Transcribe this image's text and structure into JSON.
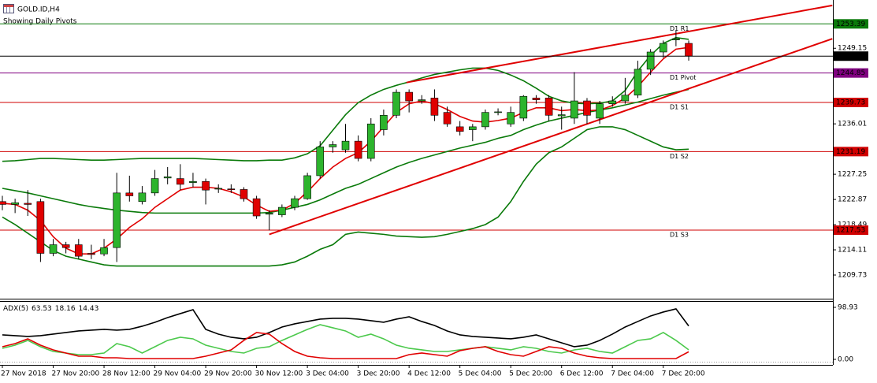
{
  "chart_data": [
    {
      "type": "candlestick",
      "title": "GOLD.ID,H4",
      "subtitle": "Showing Daily Pivots",
      "categories": [
        "27 Nov 2018",
        null,
        null,
        null,
        "27 Nov 20:00",
        null,
        null,
        null,
        "28 Nov 12:00",
        null,
        null,
        null,
        "29 Nov 04:00",
        null,
        null,
        null,
        "29 Nov 20:00",
        null,
        null,
        null,
        "30 Nov 12:00",
        null,
        null,
        null,
        "3 Dec 04:00",
        null,
        null,
        null,
        "3 Dec 20:00",
        null,
        null,
        null,
        "4 Dec 12:00",
        null,
        null,
        null,
        "5 Dec 04:00",
        null,
        null,
        null,
        "5 Dec 20:00",
        null,
        null,
        null,
        "6 Dec 12:00",
        null,
        null,
        null,
        "7 Dec 04:00",
        null,
        null,
        null,
        "7 Dec 20:00",
        null,
        null
      ],
      "open": [
        1222.5,
        1222,
        1222.2,
        1222.5,
        1213.5,
        1215,
        1215,
        1213.5,
        1213.4,
        1214.5,
        1224,
        1222.5,
        1224,
        1226.6,
        1226.5,
        1225.8,
        1226,
        1224.8,
        1224.7,
        1224.6,
        1223,
        1220.3,
        1220.2,
        1221.5,
        1223,
        1227,
        1232,
        1231.5,
        1233,
        1230,
        1235,
        1237.5,
        1241.5,
        1240,
        1240.5,
        1238,
        1235.5,
        1235,
        1235.5,
        1238,
        1236,
        1237,
        1240.5,
        1240.5,
        1237.4,
        1237,
        1240,
        1237,
        1239.5,
        1240,
        1241,
        1245.5,
        1248.5,
        1250.6,
        1250
      ],
      "high": [
        1223.5,
        1223,
        1224.5,
        1223,
        1216,
        1215.5,
        1216,
        1215,
        1216,
        1227.5,
        1227,
        1225.2,
        1228,
        1228.5,
        1229,
        1227.5,
        1226.5,
        1225.5,
        1225.5,
        1225,
        1223.5,
        1221,
        1222,
        1223.5,
        1227.5,
        1233,
        1233,
        1236,
        1234,
        1237,
        1238.5,
        1242,
        1242,
        1241,
        1242,
        1239,
        1236.5,
        1236,
        1238.5,
        1238.7,
        1239,
        1241,
        1241,
        1241,
        1239,
        1245,
        1240.5,
        1240,
        1240.8,
        1244,
        1247,
        1249,
        1250.5,
        1252.2,
        1250.5
      ],
      "low": [
        1221,
        1220.5,
        1220,
        1212,
        1213,
        1213.5,
        1212.5,
        1212.5,
        1213,
        1212,
        1222.5,
        1222,
        1223.5,
        1225.5,
        1224.5,
        1225,
        1222,
        1224,
        1224,
        1222.5,
        1219.5,
        1217.5,
        1219.8,
        1221,
        1222.8,
        1226.5,
        1231,
        1231,
        1229.5,
        1229.5,
        1234,
        1237,
        1238,
        1239.5,
        1236.5,
        1235.5,
        1234,
        1233,
        1235,
        1237.5,
        1235.5,
        1236.5,
        1239.5,
        1236.5,
        1235,
        1236,
        1236,
        1236,
        1239,
        1239.5,
        1240.5,
        1244.5,
        1247.5,
        1249.5,
        1247
      ],
      "close": [
        1222,
        1222.3,
        1222,
        1213.5,
        1215,
        1214.5,
        1213,
        1213.3,
        1214.5,
        1224,
        1223.5,
        1224,
        1226.5,
        1226.8,
        1225.5,
        1226,
        1224.5,
        1224.8,
        1224.6,
        1223,
        1220,
        1220.5,
        1221.5,
        1223,
        1227,
        1232,
        1232.4,
        1233,
        1230,
        1236,
        1237.5,
        1241.5,
        1240,
        1240.2,
        1237.5,
        1236,
        1234.7,
        1235.5,
        1238,
        1238.1,
        1238,
        1240.8,
        1240.2,
        1237.5,
        1237.6,
        1240,
        1237.5,
        1239.5,
        1240,
        1241,
        1245.5,
        1248.5,
        1250,
        1250.8,
        1247.78
      ],
      "up_color": "#2db42d",
      "down_color": "#e00000",
      "ylim": [
        1205.62,
        1257.54
      ],
      "yticks": [
        1249.15,
        1236.01,
        1227.25,
        1222.87,
        1218.49,
        1214.11,
        1209.73
      ],
      "overlays": [
        {
          "color": "#0a7a0a",
          "values": [
            1229.5,
            1229.6,
            1229.8,
            1230,
            1230,
            1229.9,
            1229.8,
            1229.7,
            1229.7,
            1229.8,
            1229.9,
            1230,
            1230,
            1230,
            1230,
            1230,
            1229.9,
            1229.8,
            1229.7,
            1229.6,
            1229.6,
            1229.7,
            1229.7,
            1230.1,
            1230.8,
            1232.2,
            1234.9,
            1237.6,
            1239.7,
            1241,
            1242,
            1242.7,
            1243.3,
            1244,
            1244.6,
            1245,
            1245.4,
            1245.7,
            1245.7,
            1245.3,
            1244.5,
            1243.5,
            1242.2,
            1240.8,
            1240,
            1239.6,
            1239.5,
            1239.6,
            1240,
            1241.8,
            1245.2,
            1247.9,
            1250,
            1251,
            1250.7
          ]
        },
        {
          "color": "#0a7a0a",
          "values": [
            1224.8,
            1224.4,
            1224,
            1223.5,
            1223,
            1222.5,
            1222,
            1221.6,
            1221.3,
            1221,
            1220.8,
            1220.6,
            1220.5,
            1220.5,
            1220.5,
            1220.5,
            1220.5,
            1220.5,
            1220.5,
            1220.5,
            1220.5,
            1220.6,
            1221,
            1221.5,
            1222,
            1222.8,
            1223.8,
            1224.8,
            1225.5,
            1226.5,
            1227.5,
            1228.5,
            1229.3,
            1230,
            1230.6,
            1231.2,
            1231.8,
            1232.3,
            1232.8,
            1233.5,
            1234,
            1235,
            1235.8,
            1236.5,
            1237,
            1237.5,
            1238,
            1238.4,
            1238.8,
            1239.3,
            1239.8,
            1240.4,
            1241,
            1241.5,
            1242
          ]
        },
        {
          "color": "#0a7a0a",
          "values": [
            1219.8,
            1218.5,
            1217,
            1215.5,
            1214,
            1213,
            1212.5,
            1212,
            1211.5,
            1211.3,
            1211.3,
            1211.3,
            1211.3,
            1211.3,
            1211.3,
            1211.3,
            1211.3,
            1211.3,
            1211.3,
            1211.3,
            1211.3,
            1211.3,
            1211.5,
            1212,
            1213,
            1214.2,
            1215,
            1216.8,
            1217.2,
            1217,
            1216.8,
            1216.5,
            1216.4,
            1216.3,
            1216.4,
            1216.8,
            1217.3,
            1217.8,
            1218.5,
            1219.8,
            1222.5,
            1226,
            1229,
            1231,
            1232,
            1233.5,
            1235,
            1235.5,
            1235.5,
            1235,
            1234,
            1233,
            1232,
            1231.5,
            1231.6
          ]
        },
        {
          "color": "#e00000",
          "values": [
            1222.2,
            1222,
            1221,
            1219.2,
            1216.4,
            1214.4,
            1213.4,
            1213.4,
            1214.4,
            1216,
            1218,
            1219.5,
            1221.5,
            1223,
            1224.5,
            1225,
            1225,
            1224.8,
            1224.2,
            1223.3,
            1221.9,
            1220.8,
            1221,
            1222.2,
            1224.2,
            1226.5,
            1228.5,
            1230,
            1231,
            1233,
            1235.5,
            1238,
            1239.5,
            1240,
            1239.5,
            1238.5,
            1237.3,
            1236.5,
            1236.3,
            1236.6,
            1237,
            1238,
            1238.8,
            1238.8,
            1238.3,
            1238.5,
            1238.3,
            1238.4,
            1239.2,
            1240.5,
            1242.5,
            1245,
            1247.3,
            1249,
            1249.3
          ]
        }
      ],
      "trendlines": [
        {
          "color": "#e00000",
          "x": [
            31.8,
            65.3
          ],
          "y": [
            1243.2,
            1256.6
          ]
        },
        {
          "color": "#e00000",
          "x": [
            21,
            65.3
          ],
          "y": [
            1216.8,
            1250.8
          ]
        }
      ],
      "levels": [
        {
          "name": "D1 R1",
          "value": 1253.39,
          "color": "#0a7a0a"
        },
        {
          "name": "D1 Pivot",
          "value": 1244.85,
          "color": "#800080"
        },
        {
          "name": "D1 S1",
          "value": 1239.73,
          "color": "#d00000"
        },
        {
          "name": "D1 S2",
          "value": 1231.19,
          "color": "#d00000"
        },
        {
          "name": "D1 S3",
          "value": 1217.53,
          "color": "#d00000"
        }
      ]
    },
    {
      "type": "line",
      "title": "ADX(5)",
      "series": [
        {
          "color": "#000000",
          "values": [
            46.5,
            45,
            43.5,
            45,
            48,
            51,
            54,
            55.5,
            57,
            55.5,
            57,
            63,
            70.5,
            79.5,
            87,
            94.5,
            57,
            48,
            42,
            39,
            42,
            51,
            61.5,
            67.5,
            72,
            76.5,
            78,
            78,
            76.5,
            73.5,
            70.5,
            76.5,
            81,
            72,
            64.5,
            54,
            46.5,
            43.5,
            42,
            40.5,
            39,
            42,
            46.5,
            39,
            31.5,
            24,
            27,
            36,
            48,
            61.5,
            72,
            82.5,
            90,
            96,
            63.53
          ]
        },
        {
          "color": "#4cc94c",
          "values": [
            21,
            27,
            36,
            24,
            15,
            12,
            9,
            9,
            12,
            30,
            24,
            12,
            24,
            36,
            42,
            39,
            27,
            21,
            15,
            12,
            21,
            24,
            36,
            46.5,
            57,
            66,
            60,
            54,
            42,
            48,
            39,
            27,
            21,
            18,
            15,
            15,
            18,
            21,
            24,
            21,
            18,
            24,
            21,
            15,
            12,
            18,
            21,
            15,
            12,
            24,
            36,
            39,
            51,
            36,
            18.16
          ]
        },
        {
          "color": "#e00000",
          "values": [
            24,
            30,
            39,
            27,
            18,
            12,
            6,
            6,
            3,
            3,
            1.5,
            1.5,
            1.5,
            1.5,
            1.5,
            1.5,
            6,
            12,
            18,
            36,
            51,
            48,
            30,
            15,
            6,
            3,
            1.5,
            1.5,
            1.5,
            1.5,
            1.5,
            1.5,
            9,
            12,
            9,
            6,
            16.5,
            21,
            24,
            15,
            9,
            6,
            15,
            24,
            21,
            12,
            6,
            3,
            1.5,
            1.5,
            1.5,
            1.5,
            1.5,
            1.5,
            14.43
          ]
        }
      ],
      "ylim": [
        -10.5,
        110.9
      ],
      "yticks": [
        98.93,
        {
          "value": 0,
          "label": "0.00"
        }
      ]
    }
  ]
}
